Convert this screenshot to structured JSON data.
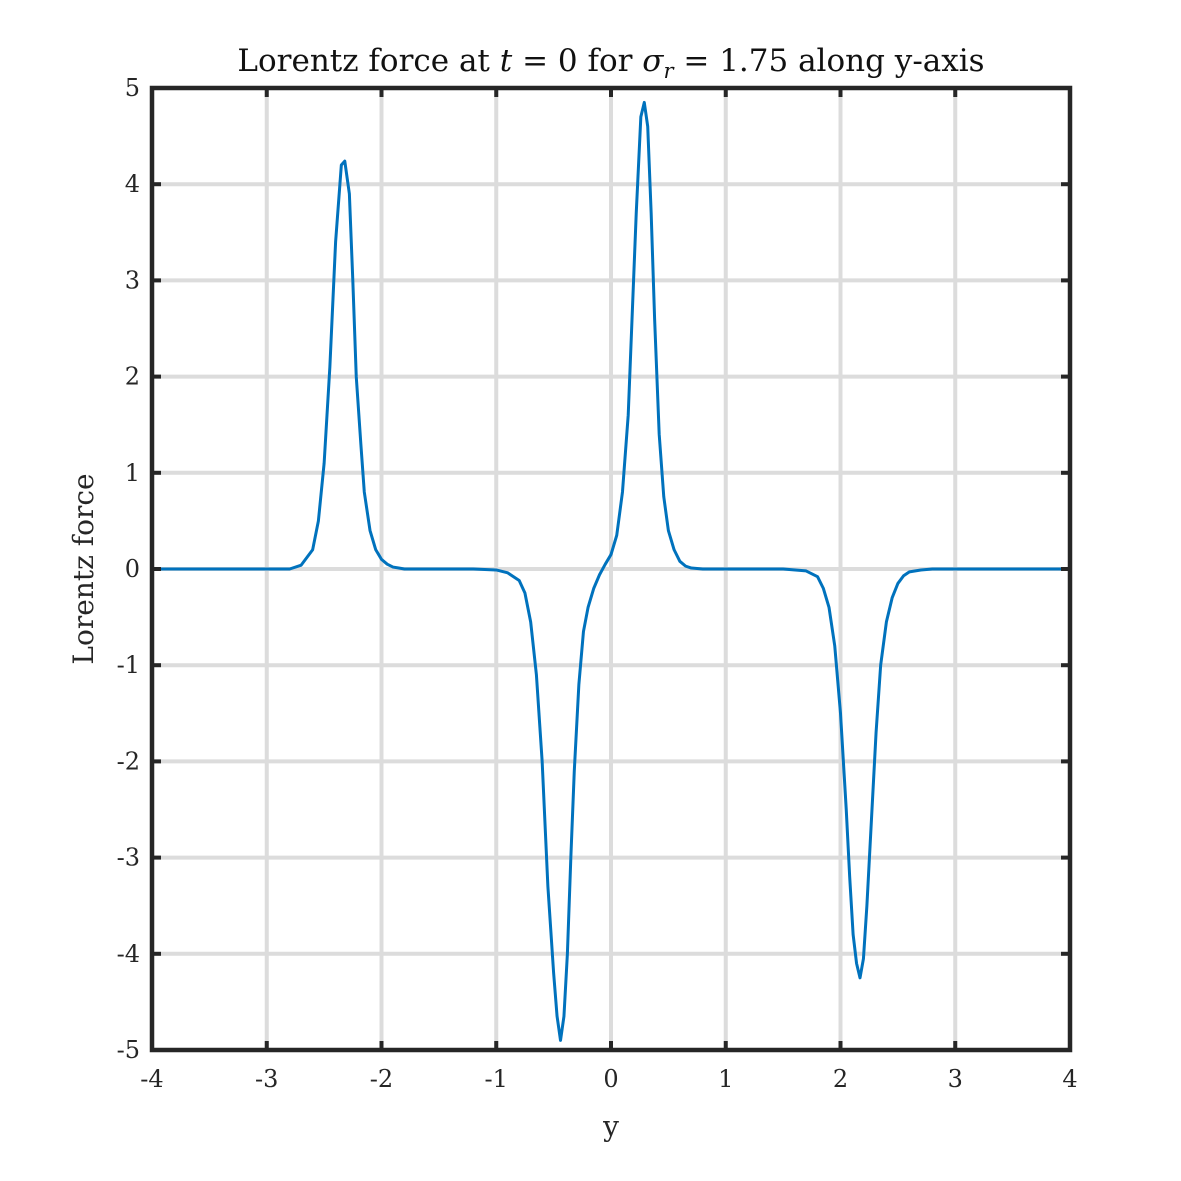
{
  "chart_data": {
    "type": "line",
    "title": {
      "prefix": "Lorentz force at ",
      "var_t": "t",
      "eq1": " = 0 for ",
      "var_sigma": "σ",
      "sub_r": "r",
      "eq2": " = 1.75 along y-axis"
    },
    "xlabel": "y",
    "ylabel": "Lorentz force",
    "xlim": [
      -4,
      4
    ],
    "ylim": [
      -5,
      5
    ],
    "xticks": [
      -4,
      -3,
      -2,
      -1,
      0,
      1,
      2,
      3,
      4
    ],
    "yticks": [
      -5,
      -4,
      -3,
      -2,
      -1,
      0,
      1,
      2,
      3,
      4,
      5
    ],
    "xtick_labels": [
      "-4",
      "-3",
      "-2",
      "-1",
      "0",
      "1",
      "2",
      "3",
      "4"
    ],
    "ytick_labels": [
      "-5",
      "-4",
      "-3",
      "-2",
      "-1",
      "0",
      "1",
      "2",
      "3",
      "4",
      "5"
    ],
    "grid": true,
    "series": [
      {
        "color": "#0072BD",
        "x": [
          -4.0,
          -3.5,
          -3.0,
          -2.8,
          -2.7,
          -2.6,
          -2.55,
          -2.5,
          -2.45,
          -2.4,
          -2.35,
          -2.32,
          -2.28,
          -2.25,
          -2.22,
          -2.18,
          -2.15,
          -2.1,
          -2.05,
          -2.0,
          -1.95,
          -1.9,
          -1.85,
          -1.8,
          -1.7,
          -1.5,
          -1.2,
          -1.0,
          -0.9,
          -0.8,
          -0.75,
          -0.7,
          -0.65,
          -0.6,
          -0.55,
          -0.5,
          -0.47,
          -0.44,
          -0.41,
          -0.38,
          -0.35,
          -0.32,
          -0.28,
          -0.24,
          -0.2,
          -0.15,
          -0.1,
          -0.05,
          0.0,
          0.05,
          0.1,
          0.15,
          0.18,
          0.22,
          0.26,
          0.29,
          0.32,
          0.35,
          0.38,
          0.42,
          0.46,
          0.5,
          0.55,
          0.6,
          0.65,
          0.7,
          0.8,
          0.9,
          1.0,
          1.2,
          1.5,
          1.7,
          1.8,
          1.85,
          1.9,
          1.95,
          2.0,
          2.05,
          2.08,
          2.11,
          2.14,
          2.17,
          2.2,
          2.23,
          2.27,
          2.31,
          2.35,
          2.4,
          2.45,
          2.5,
          2.55,
          2.6,
          2.7,
          2.8,
          3.0,
          3.5,
          4.0
        ],
        "y": [
          0.0,
          0.0,
          0.0,
          0.0,
          0.04,
          0.2,
          0.5,
          1.1,
          2.1,
          3.4,
          4.2,
          4.24,
          3.9,
          3.0,
          2.0,
          1.3,
          0.8,
          0.4,
          0.2,
          0.1,
          0.05,
          0.02,
          0.01,
          0.0,
          0.0,
          0.0,
          0.0,
          -0.01,
          -0.04,
          -0.12,
          -0.25,
          -0.55,
          -1.1,
          -2.0,
          -3.3,
          -4.2,
          -4.65,
          -4.9,
          -4.65,
          -4.0,
          -3.0,
          -2.1,
          -1.2,
          -0.65,
          -0.4,
          -0.2,
          -0.06,
          0.05,
          0.15,
          0.35,
          0.8,
          1.6,
          2.5,
          3.7,
          4.7,
          4.85,
          4.6,
          3.7,
          2.6,
          1.4,
          0.75,
          0.4,
          0.2,
          0.08,
          0.03,
          0.01,
          0.0,
          0.0,
          0.0,
          0.0,
          0.0,
          -0.02,
          -0.08,
          -0.2,
          -0.4,
          -0.8,
          -1.5,
          -2.5,
          -3.2,
          -3.8,
          -4.1,
          -4.25,
          -4.05,
          -3.5,
          -2.6,
          -1.7,
          -1.0,
          -0.55,
          -0.3,
          -0.15,
          -0.07,
          -0.03,
          -0.01,
          0.0,
          0.0,
          0.0,
          0.0
        ]
      }
    ]
  }
}
